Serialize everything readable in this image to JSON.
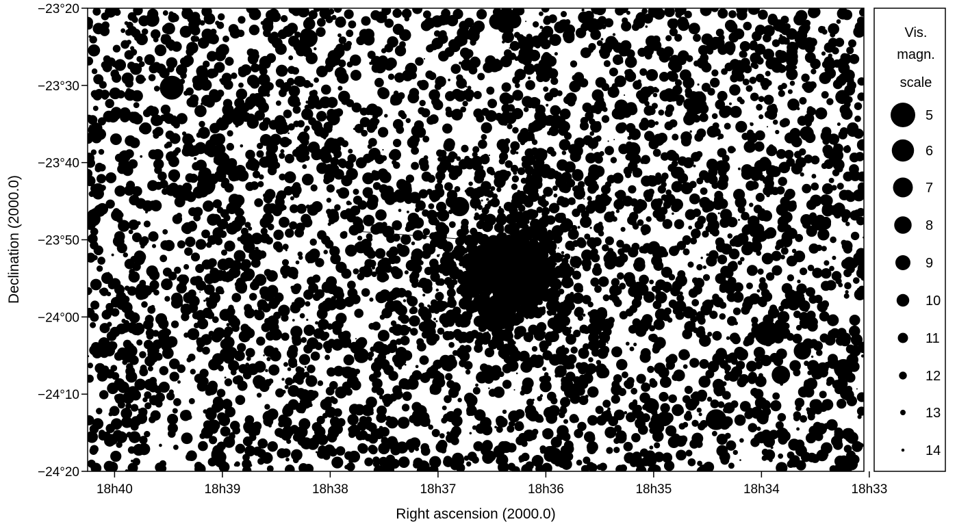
{
  "chart_data": {
    "type": "scatter",
    "title": "",
    "xlabel": "Right ascension (2000.0)",
    "ylabel": "Declination (2000.0)",
    "x_unit": "RA minutes (h:m)",
    "y_unit": "declination arcminutes",
    "xlim_ra_minutes": [
      1120.25,
      1113.05
    ],
    "ylim_dec_arcmin": [
      -1460,
      -1400
    ],
    "x_ticks": [
      {
        "label": "18h40",
        "ra_minutes": 1120
      },
      {
        "label": "18h39",
        "ra_minutes": 1119
      },
      {
        "label": "18h38",
        "ra_minutes": 1118
      },
      {
        "label": "18h37",
        "ra_minutes": 1117
      },
      {
        "label": "18h36",
        "ra_minutes": 1116
      },
      {
        "label": "18h35",
        "ra_minutes": 1115
      },
      {
        "label": "18h34",
        "ra_minutes": 1114
      },
      {
        "label": "18h33",
        "ra_minutes": 1113
      }
    ],
    "y_ticks": [
      {
        "label": "−23°20",
        "dec_arcmin": -1400
      },
      {
        "label": "−23°30",
        "dec_arcmin": -1410
      },
      {
        "label": "−23°40",
        "dec_arcmin": -1420
      },
      {
        "label": "−23°50",
        "dec_arcmin": -1430
      },
      {
        "label": "−24°00",
        "dec_arcmin": -1440
      },
      {
        "label": "−24°10",
        "dec_arcmin": -1450
      },
      {
        "label": "−24°20",
        "dec_arcmin": -1460
      }
    ],
    "bright_stars": [
      {
        "ra": 1119.47,
        "dec": -1410.3,
        "mag": 5.3
      },
      {
        "ra": 1119.15,
        "dec": -1423.0,
        "mag": 7.6
      },
      {
        "ra": 1118.2,
        "dec": -1403.9,
        "mag": 7.8
      },
      {
        "ra": 1116.8,
        "dec": -1425.7,
        "mag": 7.2
      },
      {
        "ra": 1116.45,
        "dec": -1401.7,
        "mag": 8.4
      },
      {
        "ra": 1116.3,
        "dec": -1401.6,
        "mag": 8.7
      },
      {
        "ra": 1114.42,
        "dec": -1453.3,
        "mag": 6.6
      },
      {
        "ra": 1113.95,
        "dec": -1442.1,
        "mag": 4.9
      },
      {
        "ra": 1113.82,
        "dec": -1447.5,
        "mag": 7.6
      },
      {
        "ra": 1113.62,
        "dec": -1444.4,
        "mag": 8.0
      },
      {
        "ra": 1113.24,
        "dec": -1446.7,
        "mag": 7.3
      },
      {
        "ra": 1115.83,
        "dec": -1439.0,
        "mag": 8.8
      },
      {
        "ra": 1114.58,
        "dec": -1411.7,
        "mag": 9.2
      },
      {
        "ra": 1117.71,
        "dec": -1445.0,
        "mag": 9.0
      },
      {
        "ra": 1115.19,
        "dec": -1418.3,
        "mag": 9.2
      },
      {
        "ra": 1120.2,
        "dec": -1427.3,
        "mag": 9.0
      },
      {
        "ra": 1115.02,
        "dec": -1451.5,
        "mag": 9.0
      },
      {
        "ra": 1114.9,
        "dec": -1453.2,
        "mag": 9.1
      },
      {
        "ra": 1119.65,
        "dec": -1401.5,
        "mag": 9.4
      },
      {
        "ra": 1113.58,
        "dec": -1416.2,
        "mag": 9.4
      },
      {
        "ra": 1113.25,
        "dec": -1411.5,
        "mag": 9.4
      },
      {
        "ra": 1116.05,
        "dec": -1419.0,
        "mag": 9.5
      },
      {
        "ra": 1115.3,
        "dec": -1412.7,
        "mag": 9.6
      },
      {
        "ra": 1119.0,
        "dec": -1415.0,
        "mag": 9.8
      }
    ],
    "cluster": {
      "ra": 1116.35,
      "dec": -1434.4,
      "core_radius_arcmin": 3.2
    },
    "field_star_count": 4200,
    "legend": {
      "title_lines": [
        "Vis.",
        "magn.",
        "scale"
      ],
      "entries": [
        {
          "label": "5",
          "mag": 5
        },
        {
          "label": "6",
          "mag": 6
        },
        {
          "label": "7",
          "mag": 7
        },
        {
          "label": "8",
          "mag": 8
        },
        {
          "label": "9",
          "mag": 9
        },
        {
          "label": "10",
          "mag": 10
        },
        {
          "label": "11",
          "mag": 11
        },
        {
          "label": "12",
          "mag": 12
        },
        {
          "label": "13",
          "mag": 13
        },
        {
          "label": "14",
          "mag": 14
        }
      ]
    },
    "colors": {
      "star": "#000000",
      "background": "#ffffff",
      "frame": "#000000"
    }
  }
}
